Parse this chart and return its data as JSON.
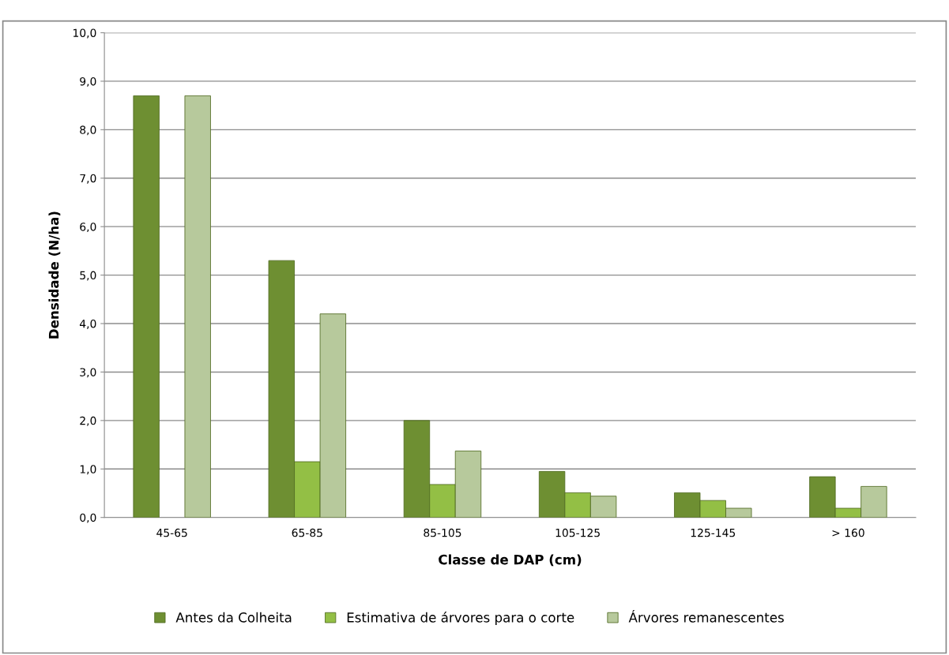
{
  "chart_data": {
    "type": "bar",
    "xlabel": "Classe de DAP (cm)",
    "ylabel": "Densidade (N/ha)",
    "categories": [
      "45-65",
      "65-85",
      "85-105",
      "105-125",
      "125-145",
      "> 160"
    ],
    "series": [
      {
        "name": "Antes da Colheita",
        "color": "#6e8f32",
        "values": [
          8.7,
          5.3,
          2.0,
          0.95,
          0.51,
          0.84
        ]
      },
      {
        "name": "Estimativa de árvores para o corte",
        "color": "#93bf45",
        "values": [
          null,
          1.15,
          0.68,
          0.51,
          0.35,
          0.19
        ]
      },
      {
        "name": "Árvores remanescentes",
        "color": "#b7c99c",
        "values": [
          8.7,
          4.2,
          1.37,
          0.44,
          0.19,
          0.64
        ]
      }
    ],
    "ylim": [
      0,
      10
    ],
    "yticks": [
      {
        "value": 0,
        "label": "0,0"
      },
      {
        "value": 1,
        "label": "1,0"
      },
      {
        "value": 2,
        "label": "2,0"
      },
      {
        "value": 3,
        "label": "3,0"
      },
      {
        "value": 4,
        "label": "4,0"
      },
      {
        "value": 5,
        "label": "5,0"
      },
      {
        "value": 6,
        "label": "6,0"
      },
      {
        "value": 7,
        "label": "7,0"
      },
      {
        "value": 8,
        "label": "8,0"
      },
      {
        "value": 9,
        "label": "9,0"
      },
      {
        "value": 10,
        "label": "10,0"
      }
    ],
    "grid": "y",
    "legend": "bottom"
  }
}
